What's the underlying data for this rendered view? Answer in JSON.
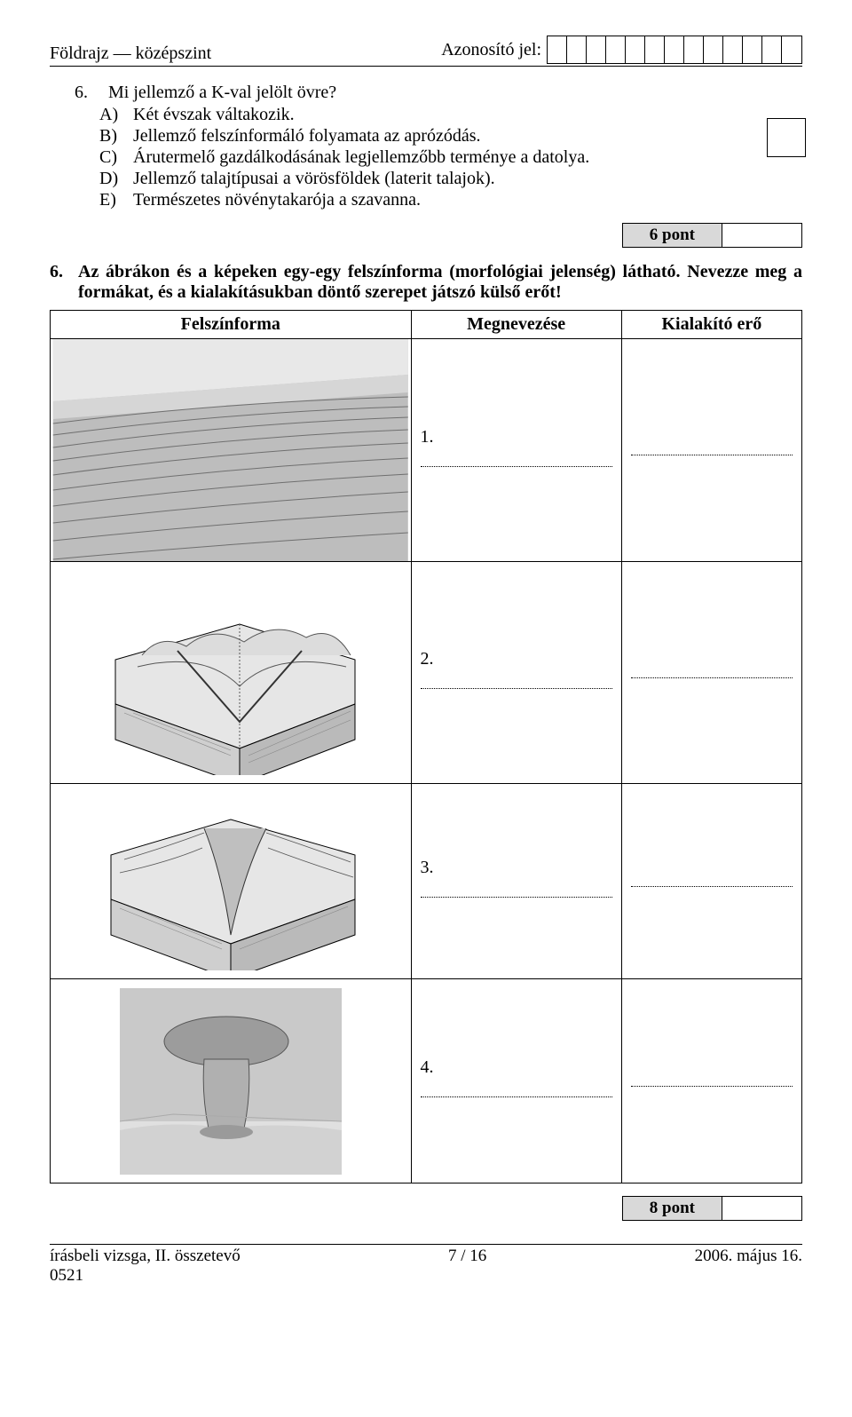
{
  "header": {
    "subject_level": "Földrajz — középszint",
    "id_label": "Azonosító jel:",
    "id_box_count": 13
  },
  "q6": {
    "number": "6.",
    "prompt": "Mi jellemző a K-val jelölt övre?",
    "options": {
      "A": "Két évszak váltakozik.",
      "B": "Jellemző felszínformáló folyamata az aprózódás.",
      "C": "Árutermelő gazdálkodásának legjellemzőbb terménye a datolya.",
      "D": "Jellemző talajtípusai a vörösföldek (laterit talajok).",
      "E": "Természetes növénytakarója a szavanna."
    },
    "points_label": "6 pont"
  },
  "task6": {
    "number": "6.",
    "text": "Az ábrákon és a képeken egy-egy felszínforma (morfológiai jelenség) látható. Nevezze meg a formákat, és a kialakításukban döntő szerepet játszó külső erőt!",
    "table": {
      "columns": {
        "form": "Felszínforma",
        "name": "Megnevezése",
        "force": "Kialakító erő"
      },
      "rows": [
        {
          "num": "1.",
          "img_alt": "sand-ripples-dune"
        },
        {
          "num": "2.",
          "img_alt": "v-shaped-valley-block"
        },
        {
          "num": "3.",
          "img_alt": "canyon-gorge-block"
        },
        {
          "num": "4.",
          "img_alt": "mushroom-rock"
        }
      ]
    },
    "points_label": "8 pont"
  },
  "footer": {
    "left": "írásbeli vizsga, II. összetevő",
    "left2": "0521",
    "center": "7 / 16",
    "right": "2006. május 16."
  },
  "colors": {
    "background": "#ffffff",
    "text": "#000000",
    "points_bg": "#d9d9d9",
    "border": "#000000"
  }
}
